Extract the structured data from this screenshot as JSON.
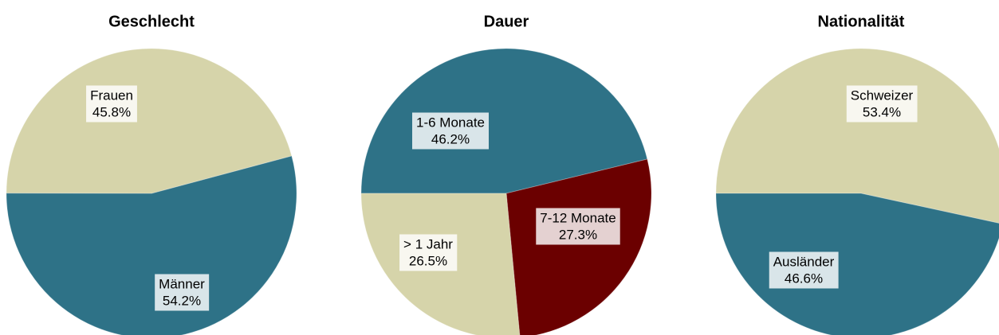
{
  "chart_data": [
    {
      "type": "pie",
      "title": "Geschlecht",
      "categories": [
        "Männer",
        "Frauen"
      ],
      "values": [
        54.2,
        45.8
      ],
      "value_labels": [
        "54.2%",
        "45.8%"
      ],
      "colors": [
        "#2e7287",
        "#d6d4aa"
      ]
    },
    {
      "type": "pie",
      "title": "Dauer",
      "categories": [
        "1-6 Monate",
        "7-12 Monate",
        "> 1 Jahr"
      ],
      "values": [
        46.2,
        27.3,
        26.5
      ],
      "value_labels": [
        "46.2%",
        "27.3%",
        "26.5%"
      ],
      "colors": [
        "#2e7287",
        "#6b0000",
        "#d6d4aa"
      ]
    },
    {
      "type": "pie",
      "title": "Nationalität",
      "categories": [
        "Schweizer",
        "Ausländer"
      ],
      "values": [
        53.4,
        46.6
      ],
      "value_labels": [
        "53.4%",
        "46.6%"
      ],
      "colors": [
        "#d6d4aa",
        "#2e7287"
      ]
    }
  ]
}
